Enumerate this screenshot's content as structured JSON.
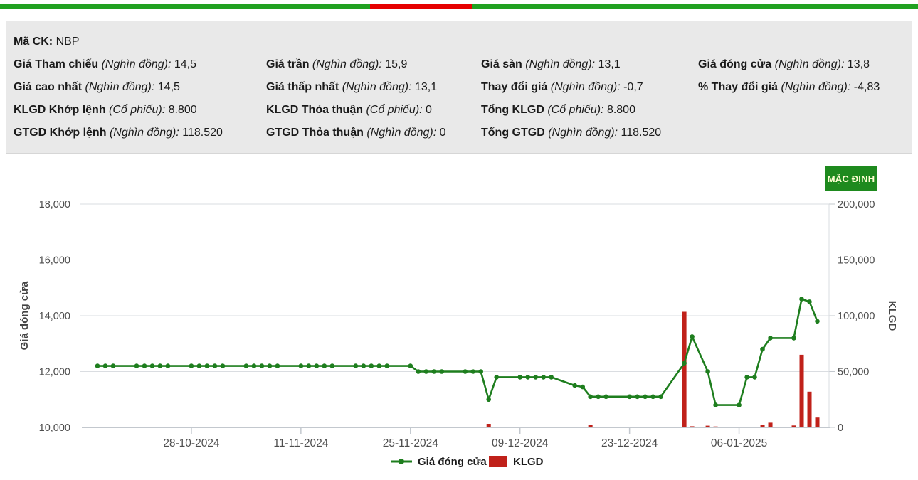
{
  "brand_bar": {
    "green": "#21a121",
    "red": "#e60000"
  },
  "info": {
    "ma_ck": {
      "label": "Mã CK:",
      "value": "NBP"
    },
    "rows": [
      [
        {
          "label": "Giá Tham chiếu",
          "unit": "(Nghìn đồng):",
          "value": "14,5"
        },
        {
          "label": "Giá trần",
          "unit": "(Nghìn đồng):",
          "value": "15,9"
        },
        {
          "label": "Giá sàn",
          "unit": "(Nghìn đồng):",
          "value": "13,1"
        },
        {
          "label": "Giá đóng cửa",
          "unit": "(Nghìn đồng):",
          "value": "13,8"
        }
      ],
      [
        {
          "label": "Giá cao nhất",
          "unit": "(Nghìn đồng):",
          "value": "14,5"
        },
        {
          "label": "Giá thấp nhất",
          "unit": "(Nghìn đồng):",
          "value": "13,1"
        },
        {
          "label": "Thay đổi giá",
          "unit": "(Nghìn đồng):",
          "value": "-0,7"
        },
        {
          "label": "% Thay đổi giá",
          "unit": "(Nghìn đồng):",
          "value": "-4,83"
        }
      ],
      [
        {
          "label": "KLGD Khớp lệnh",
          "unit": "(Cổ phiếu):",
          "value": "8.800"
        },
        {
          "label": "KLGD Thỏa thuận",
          "unit": "(Cổ phiếu):",
          "value": "0"
        },
        {
          "label": "Tổng KLGD",
          "unit": "(Cổ phiếu):",
          "value": "8.800"
        },
        null
      ],
      [
        {
          "label": "GTGD Khớp lệnh",
          "unit": "(Nghìn đồng):",
          "value": "118.520"
        },
        {
          "label": "GTGD Thỏa thuận",
          "unit": "(Nghìn đồng):",
          "value": "0"
        },
        {
          "label": "Tổng GTGD",
          "unit": "(Nghìn đồng):",
          "value": "118.520"
        },
        null
      ]
    ]
  },
  "button": {
    "label": "MẶC ĐỊNH"
  },
  "chart_data": {
    "type": "line-bar-combo",
    "x_ticks": [
      "28-10-2024",
      "11-11-2024",
      "25-11-2024",
      "09-12-2024",
      "23-12-2024",
      "06-01-2025"
    ],
    "left_axis": {
      "label": "Giá đóng cửa",
      "range": [
        10000,
        18000
      ],
      "tick_labels": [
        "18,000",
        "16,000",
        "14,000",
        "12,000",
        "10,000"
      ]
    },
    "right_axis": {
      "label": "KLGD",
      "range": [
        0,
        200000
      ],
      "tick_labels": [
        "200,000",
        "150,000",
        "100,000",
        "50,000",
        "0"
      ]
    },
    "legend": [
      {
        "label": "Giá đóng cửa",
        "type": "line",
        "color": "#1e7e1e"
      },
      {
        "label": "KLGD",
        "type": "bar",
        "color": "#c0211a"
      }
    ],
    "grid": true,
    "points_format": [
      "date",
      "close",
      "volume"
    ],
    "points": [
      [
        "16-10-2024",
        12200,
        0
      ],
      [
        "17-10-2024",
        12200,
        0
      ],
      [
        "18-10-2024",
        12200,
        0
      ],
      [
        "21-10-2024",
        12200,
        0
      ],
      [
        "22-10-2024",
        12200,
        0
      ],
      [
        "23-10-2024",
        12200,
        0
      ],
      [
        "24-10-2024",
        12200,
        0
      ],
      [
        "25-10-2024",
        12200,
        0
      ],
      [
        "28-10-2024",
        12200,
        0
      ],
      [
        "29-10-2024",
        12200,
        0
      ],
      [
        "30-10-2024",
        12200,
        0
      ],
      [
        "31-10-2024",
        12200,
        0
      ],
      [
        "01-11-2024",
        12200,
        0
      ],
      [
        "04-11-2024",
        12200,
        0
      ],
      [
        "05-11-2024",
        12200,
        0
      ],
      [
        "06-11-2024",
        12200,
        0
      ],
      [
        "07-11-2024",
        12200,
        0
      ],
      [
        "08-11-2024",
        12200,
        0
      ],
      [
        "11-11-2024",
        12200,
        0
      ],
      [
        "12-11-2024",
        12200,
        0
      ],
      [
        "13-11-2024",
        12200,
        0
      ],
      [
        "14-11-2024",
        12200,
        0
      ],
      [
        "15-11-2024",
        12200,
        0
      ],
      [
        "18-11-2024",
        12200,
        0
      ],
      [
        "19-11-2024",
        12200,
        0
      ],
      [
        "20-11-2024",
        12200,
        0
      ],
      [
        "21-11-2024",
        12200,
        0
      ],
      [
        "22-11-2024",
        12200,
        0
      ],
      [
        "25-11-2024",
        12200,
        0
      ],
      [
        "26-11-2024",
        12000,
        0
      ],
      [
        "27-11-2024",
        12000,
        0
      ],
      [
        "28-11-2024",
        12000,
        0
      ],
      [
        "29-11-2024",
        12000,
        0
      ],
      [
        "02-12-2024",
        12000,
        0
      ],
      [
        "03-12-2024",
        12000,
        0
      ],
      [
        "04-12-2024",
        12000,
        0
      ],
      [
        "05-12-2024",
        11000,
        3200
      ],
      [
        "06-12-2024",
        11800,
        0
      ],
      [
        "09-12-2024",
        11800,
        0
      ],
      [
        "10-12-2024",
        11800,
        0
      ],
      [
        "11-12-2024",
        11800,
        0
      ],
      [
        "12-12-2024",
        11800,
        0
      ],
      [
        "13-12-2024",
        11800,
        0
      ],
      [
        "16-12-2024",
        11500,
        0
      ],
      [
        "17-12-2024",
        11450,
        0
      ],
      [
        "18-12-2024",
        11100,
        2000
      ],
      [
        "19-12-2024",
        11100,
        0
      ],
      [
        "20-12-2024",
        11100,
        0
      ],
      [
        "23-12-2024",
        11100,
        0
      ],
      [
        "24-12-2024",
        11100,
        0
      ],
      [
        "25-12-2024",
        11100,
        0
      ],
      [
        "26-12-2024",
        11100,
        0
      ],
      [
        "27-12-2024",
        11100,
        0
      ],
      [
        "30-12-2024",
        12300,
        103500
      ],
      [
        "31-12-2024",
        13250,
        1000
      ],
      [
        "02-01-2025",
        12000,
        1500
      ],
      [
        "03-01-2025",
        10800,
        800
      ],
      [
        "06-01-2025",
        10800,
        0
      ],
      [
        "07-01-2025",
        11800,
        0
      ],
      [
        "08-01-2025",
        11800,
        0
      ],
      [
        "09-01-2025",
        12800,
        2000
      ],
      [
        "10-01-2025",
        13200,
        4200
      ],
      [
        "13-01-2025",
        13200,
        1700
      ],
      [
        "14-01-2025",
        14600,
        65000
      ],
      [
        "15-01-2025",
        14500,
        32000
      ],
      [
        "16-01-2025",
        13800,
        8800
      ]
    ]
  }
}
